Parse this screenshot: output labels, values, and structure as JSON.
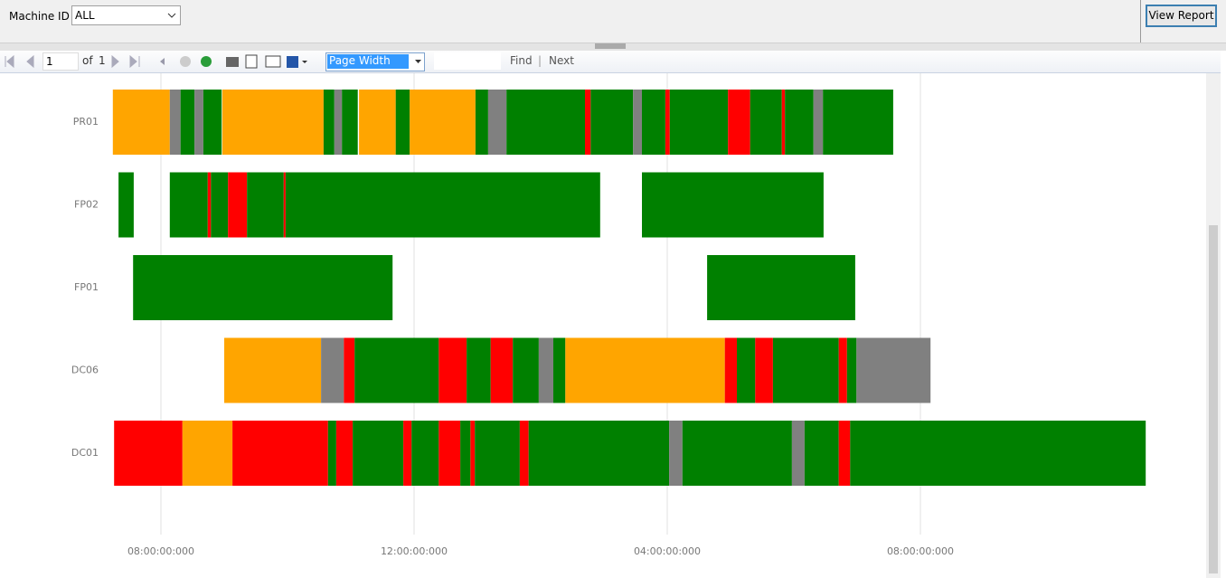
{
  "toolbar": {
    "param_label": "Machine ID",
    "param_value": "ALL",
    "view_report": "View Report",
    "page": "1",
    "of": "of",
    "total_pages": "1",
    "zoom": "Page Width",
    "find": "Find",
    "separator": "|",
    "next": "Next"
  },
  "chart_data": {
    "type": "timeline",
    "xlim": [
      7,
      24.5
    ],
    "xticks": [
      {
        "value": 8,
        "label": "08:00:00:000"
      },
      {
        "value": 12,
        "label": "12:00:00:000"
      },
      {
        "value": 16,
        "label": "04:00:00:000"
      },
      {
        "value": 20,
        "label": "08:00:00:000"
      }
    ],
    "grid": true,
    "rows": [
      {
        "name": "PR01",
        "segments": [
          [
            7.24,
            8.14,
            "#ffa500"
          ],
          [
            8.14,
            8.31,
            "#808080"
          ],
          [
            8.31,
            8.53,
            "#008000"
          ],
          [
            8.53,
            8.67,
            "#808080"
          ],
          [
            8.67,
            8.96,
            "#008000"
          ],
          [
            8.97,
            10.57,
            "#ffa500"
          ],
          [
            10.57,
            10.74,
            "#008000"
          ],
          [
            10.74,
            10.86,
            "#808080"
          ],
          [
            10.86,
            11.11,
            "#008000"
          ],
          [
            11.13,
            11.71,
            "#ffa500"
          ],
          [
            11.71,
            11.93,
            "#008000"
          ],
          [
            11.93,
            12.97,
            "#ffa500"
          ],
          [
            12.97,
            13.17,
            "#008000"
          ],
          [
            13.17,
            13.46,
            "#808080"
          ],
          [
            13.46,
            14.7,
            "#008000"
          ],
          [
            14.7,
            14.79,
            "#ff0000"
          ],
          [
            14.79,
            15.46,
            "#008000"
          ],
          [
            15.46,
            15.6,
            "#808080"
          ],
          [
            15.6,
            15.97,
            "#008000"
          ],
          [
            15.97,
            16.04,
            "#ff0000"
          ],
          [
            16.04,
            16.96,
            "#008000"
          ],
          [
            16.96,
            17.31,
            "#ff0000"
          ],
          [
            17.31,
            17.81,
            "#008000"
          ],
          [
            17.81,
            17.86,
            "#ff0000"
          ],
          [
            17.86,
            18.31,
            "#008000"
          ],
          [
            18.31,
            18.46,
            "#808080"
          ],
          [
            18.46,
            19.57,
            "#008000"
          ]
        ]
      },
      {
        "name": "FP02",
        "segments": [
          [
            7.33,
            7.57,
            "#008000"
          ],
          [
            8.14,
            8.74,
            "#008000"
          ],
          [
            8.74,
            8.79,
            "#ff0000"
          ],
          [
            8.79,
            9.06,
            "#008000"
          ],
          [
            9.06,
            9.36,
            "#ff0000"
          ],
          [
            9.36,
            9.94,
            "#008000"
          ],
          [
            9.94,
            9.97,
            "#ff0000"
          ],
          [
            9.97,
            14.94,
            "#008000"
          ],
          [
            15.6,
            18.47,
            "#008000"
          ]
        ]
      },
      {
        "name": "FP01",
        "segments": [
          [
            7.56,
            11.66,
            "#008000"
          ],
          [
            16.63,
            18.97,
            "#008000"
          ]
        ]
      },
      {
        "name": "DC06",
        "segments": [
          [
            9.0,
            10.53,
            "#ffa500"
          ],
          [
            10.53,
            10.89,
            "#808080"
          ],
          [
            10.89,
            11.06,
            "#ff0000"
          ],
          [
            11.06,
            12.39,
            "#008000"
          ],
          [
            12.39,
            12.83,
            "#ff0000"
          ],
          [
            12.83,
            13.21,
            "#008000"
          ],
          [
            13.21,
            13.56,
            "#ff0000"
          ],
          [
            13.56,
            13.97,
            "#008000"
          ],
          [
            13.97,
            14.2,
            "#808080"
          ],
          [
            14.2,
            14.39,
            "#008000"
          ],
          [
            14.39,
            16.91,
            "#ffa500"
          ],
          [
            16.91,
            17.1,
            "#ff0000"
          ],
          [
            17.1,
            17.39,
            "#008000"
          ],
          [
            17.39,
            17.67,
            "#ff0000"
          ],
          [
            17.67,
            18.71,
            "#008000"
          ],
          [
            18.71,
            18.84,
            "#ff0000"
          ],
          [
            18.84,
            18.99,
            "#008000"
          ],
          [
            18.99,
            20.16,
            "#808080"
          ]
        ]
      },
      {
        "name": "DC01",
        "segments": [
          [
            7.26,
            8.34,
            "#ff0000"
          ],
          [
            8.34,
            9.13,
            "#ffa500"
          ],
          [
            9.13,
            10.64,
            "#ff0000"
          ],
          [
            10.64,
            10.77,
            "#008000"
          ],
          [
            10.77,
            11.03,
            "#ff0000"
          ],
          [
            11.03,
            11.83,
            "#008000"
          ],
          [
            11.83,
            11.96,
            "#ff0000"
          ],
          [
            11.96,
            12.39,
            "#008000"
          ],
          [
            12.39,
            12.73,
            "#ff0000"
          ],
          [
            12.73,
            12.89,
            "#008000"
          ],
          [
            12.89,
            12.96,
            "#ff0000"
          ],
          [
            12.96,
            13.67,
            "#008000"
          ],
          [
            13.67,
            13.81,
            "#ff0000"
          ],
          [
            13.81,
            16.03,
            "#008000"
          ],
          [
            16.03,
            16.24,
            "#808080"
          ],
          [
            16.24,
            17.97,
            "#008000"
          ],
          [
            17.97,
            18.17,
            "#808080"
          ],
          [
            18.17,
            18.71,
            "#008000"
          ],
          [
            18.71,
            18.89,
            "#ff0000"
          ],
          [
            18.89,
            23.56,
            "#008000"
          ]
        ]
      }
    ]
  }
}
